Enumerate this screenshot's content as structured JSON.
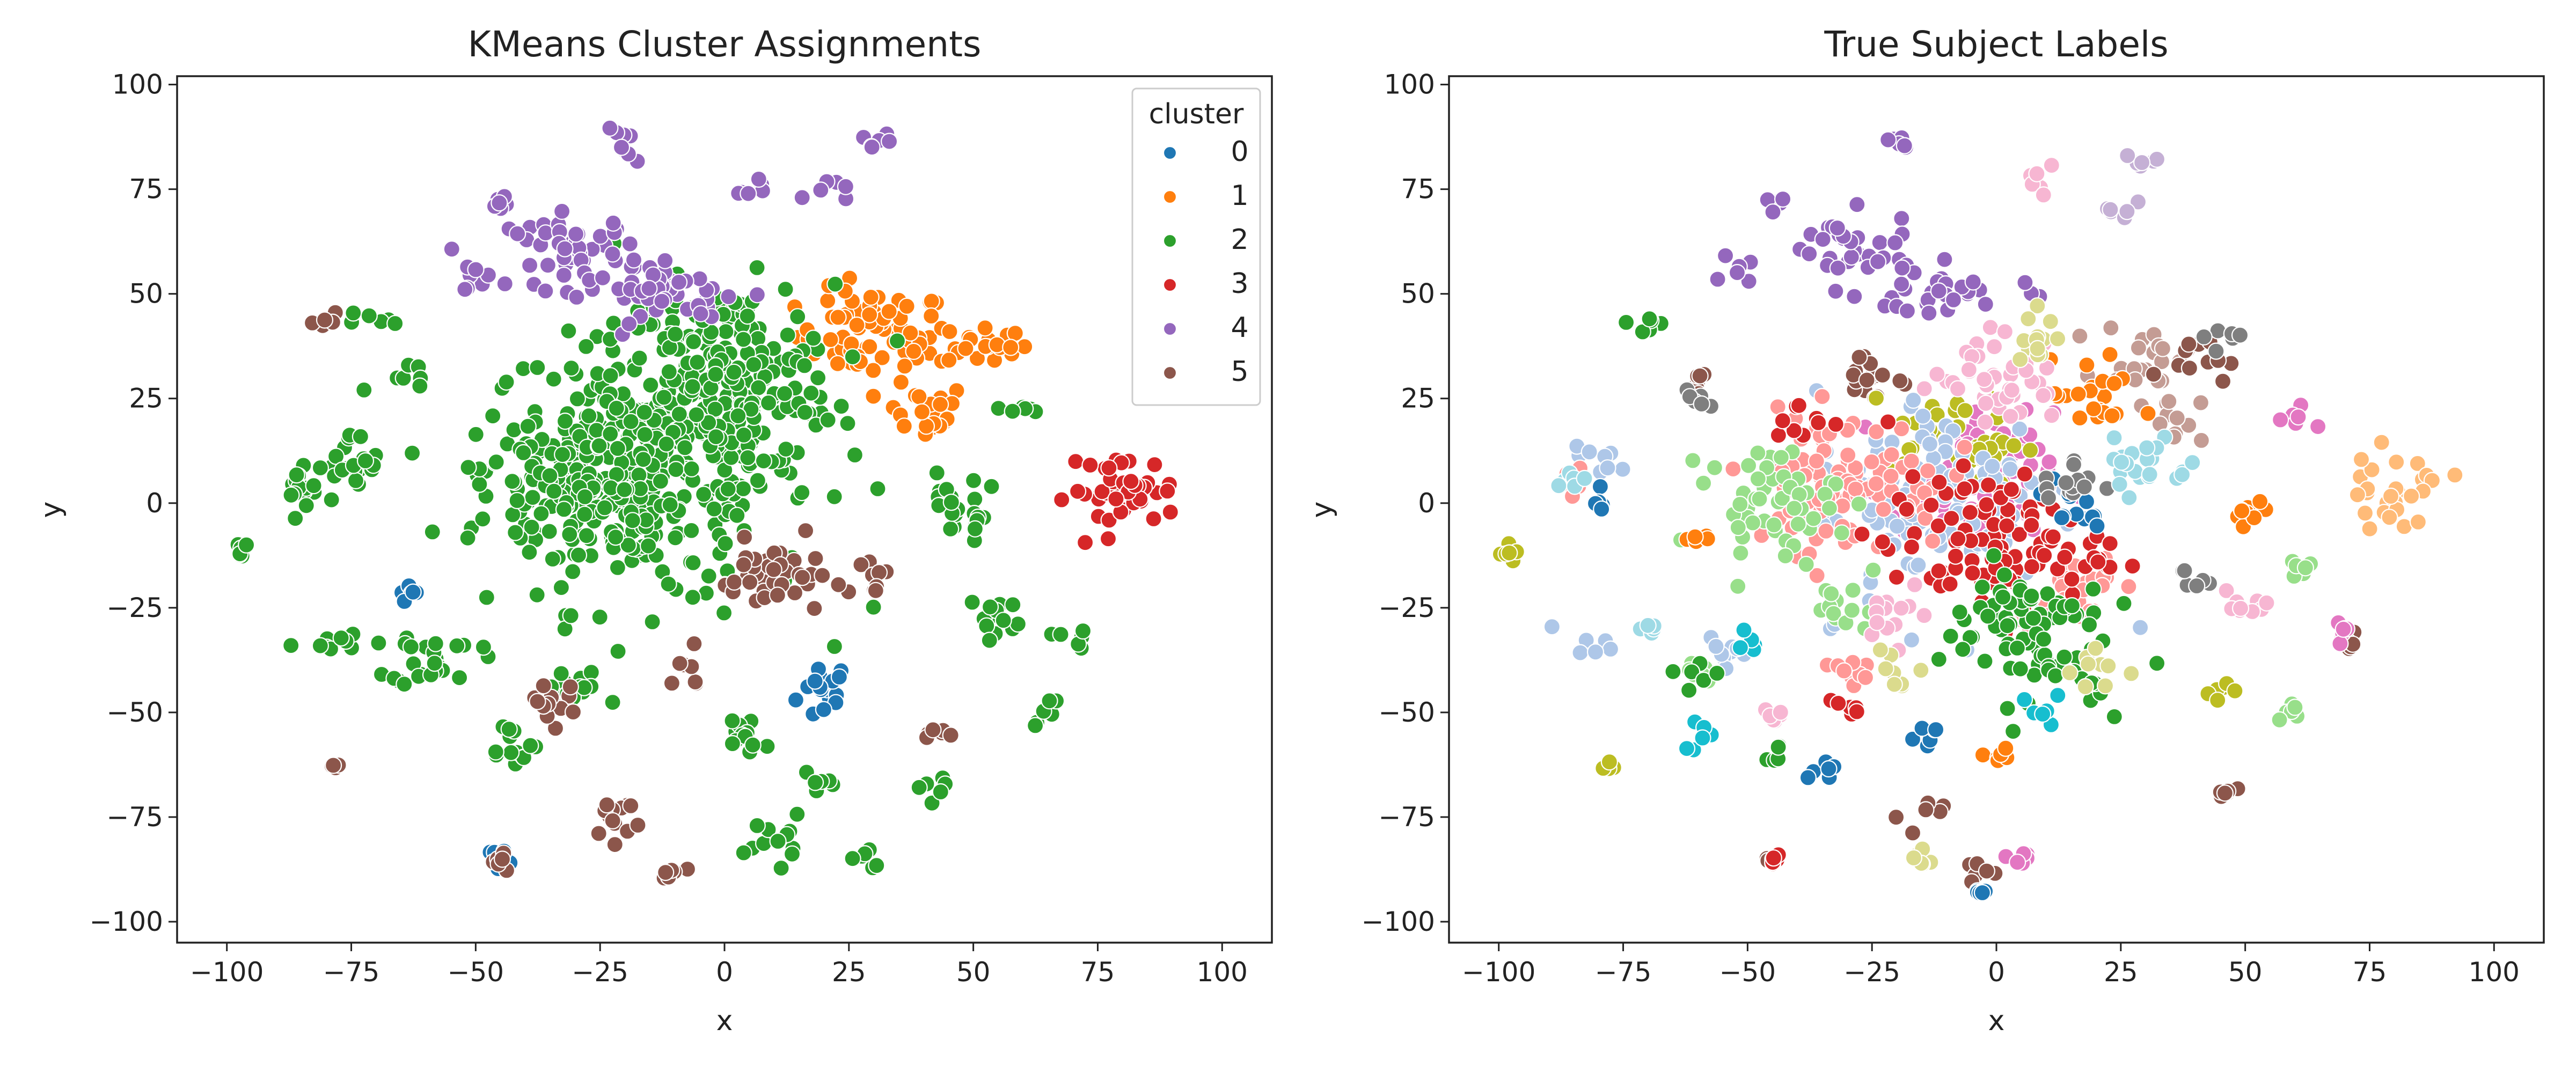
{
  "chart_data": [
    {
      "type": "scatter",
      "title": "KMeans Cluster Assignments",
      "xlabel": "x",
      "ylabel": "y",
      "xlim": [
        -110,
        110
      ],
      "ylim": [
        -105,
        102
      ],
      "xticks": [
        -100,
        -75,
        -50,
        -25,
        0,
        25,
        50,
        75,
        100
      ],
      "yticks": [
        -100,
        -75,
        -50,
        -25,
        0,
        25,
        50,
        75,
        100
      ],
      "xtick_labels": [
        "−100",
        "−75",
        "−50",
        "−25",
        "0",
        "25",
        "50",
        "75",
        "100"
      ],
      "ytick_labels": [
        "−100",
        "−75",
        "−50",
        "−25",
        "0",
        "25",
        "50",
        "75",
        "100"
      ],
      "grid": false,
      "legend": {
        "title": "cluster",
        "placement": "top-right",
        "entries": [
          "0",
          "1",
          "2",
          "3",
          "4",
          "5"
        ]
      },
      "series": [
        {
          "name": "0",
          "color": "#1f77b4",
          "clusters": [
            [
              20,
              -45,
              5,
              7
            ],
            [
              -45,
              -83,
              3,
              3
            ],
            [
              -63,
              -22,
              2,
              2
            ]
          ]
        },
        {
          "name": "1",
          "color": "#ff7f0e",
          "clusters": [
            [
              30,
              40,
              14,
              10
            ],
            [
              52,
              38,
              8,
              5
            ],
            [
              40,
              22,
              8,
              6
            ]
          ]
        },
        {
          "name": "2",
          "color": "#2ca02c",
          "clusters": [
            [
              -15,
              8,
              30,
              30
            ],
            [
              0,
              30,
              20,
              20
            ],
            [
              -75,
              8,
              6,
              8
            ],
            [
              -80,
              -33,
              6,
              3
            ],
            [
              -58,
              -37,
              8,
              6
            ],
            [
              -43,
              -57,
              5,
              5
            ],
            [
              -30,
              5,
              18,
              15
            ],
            [
              -70,
              43,
              4,
              3
            ],
            [
              -97,
              -12,
              2,
              2
            ],
            [
              -30,
              -45,
              6,
              5
            ],
            [
              5,
              -55,
              6,
              5
            ],
            [
              10,
              -80,
              5,
              5
            ],
            [
              27,
              -85,
              3,
              3
            ],
            [
              43,
              -68,
              4,
              3
            ],
            [
              55,
              -27,
              5,
              5
            ],
            [
              65,
              -50,
              3,
              3
            ],
            [
              70,
              -32,
              4,
              3
            ],
            [
              45,
              0,
              6,
              6
            ],
            [
              60,
              22,
              3,
              3
            ],
            [
              50,
              -5,
              3,
              3
            ],
            [
              -85,
              5,
              5,
              5
            ],
            [
              -62,
              30,
              4,
              3
            ],
            [
              20,
              -68,
              4,
              3
            ]
          ]
        },
        {
          "name": "3",
          "color": "#d62728",
          "clusters": [
            [
              80,
              3,
              10,
              8
            ]
          ]
        },
        {
          "name": "4",
          "color": "#9467bd",
          "clusters": [
            [
              -20,
              85,
              4,
              4
            ],
            [
              -30,
              60,
              12,
              8
            ],
            [
              -10,
              50,
              15,
              6
            ],
            [
              30,
              86,
              3,
              3
            ],
            [
              -52,
              55,
              3,
              3
            ],
            [
              5,
              75,
              3,
              3
            ],
            [
              -45,
              72,
              2,
              2
            ],
            [
              20,
              75,
              4,
              3
            ]
          ]
        },
        {
          "name": "5",
          "color": "#8c564b",
          "clusters": [
            [
              10,
              -18,
              10,
              8
            ],
            [
              -22,
              -75,
              5,
              5
            ],
            [
              -10,
              -88,
              4,
              3
            ],
            [
              -35,
              -47,
              5,
              5
            ],
            [
              30,
              -20,
              4,
              4
            ],
            [
              -45,
              -85,
              2,
              2
            ],
            [
              45,
              -55,
              3,
              3
            ],
            [
              -80,
              43,
              2,
              2
            ],
            [
              -78,
              -63,
              1,
              1
            ],
            [
              -8,
              -40,
              4,
              4
            ]
          ]
        }
      ]
    },
    {
      "type": "scatter",
      "title": "True Subject Labels",
      "xlabel": "x",
      "ylabel": "y",
      "xlim": [
        -110,
        110
      ],
      "ylim": [
        -105,
        102
      ],
      "xticks": [
        -100,
        -75,
        -50,
        -25,
        0,
        25,
        50,
        75,
        100
      ],
      "yticks": [
        -100,
        -75,
        -50,
        -25,
        0,
        25,
        50,
        75,
        100
      ],
      "xtick_labels": [
        "−100",
        "−75",
        "−50",
        "−25",
        "0",
        "25",
        "50",
        "75",
        "100"
      ],
      "ytick_labels": [
        "−100",
        "−75",
        "−50",
        "−25",
        "0",
        "25",
        "50",
        "75",
        "100"
      ],
      "grid": false,
      "series": [
        {
          "color": "#9467bd",
          "clusters": [
            [
              -20,
              85,
              4,
              4
            ],
            [
              -30,
              60,
              12,
              8
            ],
            [
              -10,
              50,
              15,
              6
            ],
            [
              -52,
              55,
              3,
              3
            ],
            [
              -45,
              72,
              2,
              2
            ]
          ]
        },
        {
          "color": "#ffbb78",
          "clusters": [
            [
              80,
              3,
              10,
              8
            ]
          ]
        },
        {
          "color": "#c49c94",
          "clusters": [
            [
              30,
              35,
              8,
              7
            ],
            [
              35,
              20,
              6,
              5
            ]
          ]
        },
        {
          "color": "#c5b0d5",
          "clusters": [
            [
              30,
              83,
              4,
              4
            ],
            [
              25,
              70,
              3,
              3
            ]
          ]
        },
        {
          "color": "#8c564b",
          "clusters": [
            [
              -25,
              30,
              8,
              6
            ],
            [
              -60,
              30,
              2,
              3
            ],
            [
              40,
              35,
              6,
              5
            ],
            [
              45,
              -70,
              3,
              3
            ],
            [
              -15,
              -75,
              4,
              4
            ],
            [
              -5,
              -88,
              3,
              3
            ],
            [
              -45,
              -85,
              2,
              2
            ],
            [
              70,
              -33,
              3,
              3
            ]
          ]
        },
        {
          "color": "#e377c2",
          "clusters": [
            [
              60,
              20,
              3,
              3
            ],
            [
              -5,
              5,
              15,
              15
            ],
            [
              5,
              -85,
              3,
              3
            ],
            [
              70,
              -30,
              3,
              3
            ]
          ]
        },
        {
          "color": "#bcbd22",
          "clusters": [
            [
              -97,
              -12,
              2,
              2
            ],
            [
              -8,
              15,
              12,
              10
            ],
            [
              45,
              -45,
              3,
              3
            ],
            [
              -78,
              -63,
              1,
              1
            ]
          ]
        },
        {
          "color": "#aec7e8",
          "clusters": [
            [
              -10,
              0,
              25,
              25
            ],
            [
              -80,
              10,
              5,
              5
            ],
            [
              -80,
              -33,
              5,
              3
            ],
            [
              -55,
              -35,
              5,
              5
            ]
          ]
        },
        {
          "color": "#ff9896",
          "clusters": [
            [
              -30,
              5,
              18,
              15
            ],
            [
              -30,
              -40,
              5,
              5
            ],
            [
              -85,
              5,
              4,
              4
            ],
            [
              15,
              -20,
              10,
              8
            ]
          ]
        },
        {
          "color": "#98df8a",
          "clusters": [
            [
              -45,
              0,
              12,
              12
            ],
            [
              -30,
              -25,
              6,
              6
            ],
            [
              60,
              -50,
              3,
              3
            ],
            [
              60,
              -15,
              3,
              3
            ],
            [
              -60,
              -40,
              3,
              3
            ]
          ]
        },
        {
          "color": "#d62728",
          "clusters": [
            [
              0,
              -10,
              20,
              15
            ],
            [
              -40,
              20,
              5,
              5
            ],
            [
              -45,
              -85,
              2,
              2
            ],
            [
              -30,
              -50,
              4,
              4
            ]
          ]
        },
        {
          "color": "#2ca02c",
          "clusters": [
            [
              -70,
              43,
              4,
              3
            ],
            [
              5,
              -30,
              15,
              15
            ],
            [
              -60,
              -40,
              4,
              4
            ],
            [
              20,
              -45,
              3,
              4
            ],
            [
              -45,
              -60,
              3,
              3
            ]
          ]
        },
        {
          "color": "#1f77b4",
          "clusters": [
            [
              -3,
              -93,
              2,
              1
            ],
            [
              -35,
              -65,
              3,
              3
            ],
            [
              -80,
              0,
              2,
              2
            ],
            [
              -15,
              -55,
              3,
              3
            ],
            [
              15,
              0,
              6,
              6
            ]
          ]
        },
        {
          "color": "#ff7f0e",
          "clusters": [
            [
              50,
              -5,
              5,
              5
            ],
            [
              20,
              25,
              8,
              8
            ],
            [
              -60,
              -8,
              3,
              3
            ],
            [
              0,
              -60,
              3,
              3
            ]
          ]
        },
        {
          "color": "#7f7f7f",
          "clusters": [
            [
              45,
              40,
              3,
              3
            ],
            [
              -60,
              25,
              2,
              2
            ],
            [
              40,
              -18,
              3,
              3
            ],
            [
              15,
              5,
              6,
              6
            ]
          ]
        },
        {
          "color": "#f7b6d2",
          "clusters": [
            [
              0,
              30,
              12,
              10
            ],
            [
              10,
              77,
              3,
              3
            ],
            [
              -45,
              -50,
              3,
              3
            ],
            [
              50,
              -25,
              5,
              5
            ],
            [
              -20,
              -25,
              6,
              6
            ]
          ]
        },
        {
          "color": "#dbdb8d",
          "clusters": [
            [
              -15,
              -85,
              3,
              3
            ],
            [
              -20,
              -40,
              5,
              5
            ],
            [
              20,
              -40,
              5,
              5
            ],
            [
              10,
              40,
              6,
              6
            ]
          ]
        },
        {
          "color": "#17becf",
          "clusters": [
            [
              -60,
              -55,
              4,
              4
            ],
            [
              -50,
              -33,
              3,
              3
            ],
            [
              10,
              -50,
              4,
              4
            ]
          ]
        },
        {
          "color": "#9edae5",
          "clusters": [
            [
              -85,
              5,
              3,
              3
            ],
            [
              -70,
              -30,
              3,
              3
            ],
            [
              30,
              10,
              8,
              8
            ]
          ]
        }
      ]
    }
  ]
}
